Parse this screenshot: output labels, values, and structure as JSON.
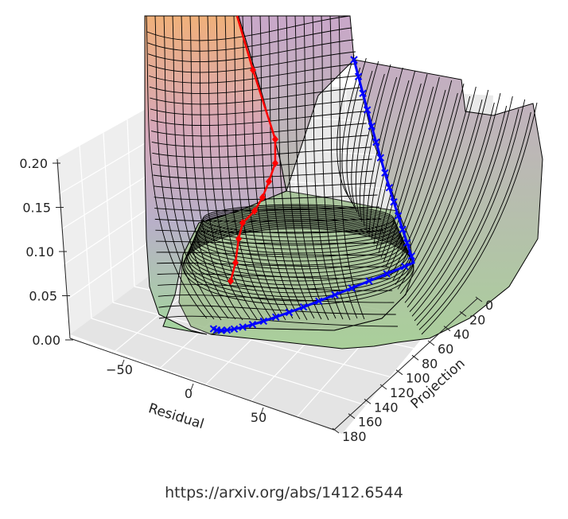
{
  "chart_data": {
    "type": "surface3d",
    "title": "",
    "z_axis": {
      "ticks": [
        "0.20",
        "0.15",
        "0.10",
        "0.05",
        "0.00"
      ],
      "range": [
        0,
        0.2
      ]
    },
    "x_axis": {
      "label": "Residual",
      "ticks": [
        "−50",
        "0",
        "50"
      ]
    },
    "y_axis": {
      "label": "Projection",
      "ticks": [
        "0",
        "20",
        "40",
        "60",
        "80",
        "100",
        "120",
        "140",
        "160",
        "180"
      ]
    },
    "series": [
      {
        "color": "#ff0000",
        "marker": "diamond",
        "kind": "trajectory"
      },
      {
        "color": "#0000ff",
        "marker": "x",
        "kind": "trajectory"
      }
    ],
    "colors": {
      "surface_warm": "#f0b07a",
      "surface_mid": "#c9a7c9",
      "surface_cool": "#9fd49a",
      "mesh": "#000000"
    }
  },
  "footer": {
    "url": "https://arxiv.org/abs/1412.6544"
  }
}
